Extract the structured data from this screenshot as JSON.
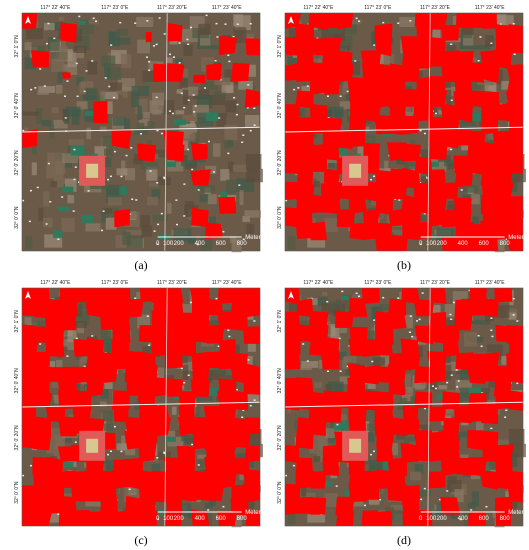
{
  "panels": [
    {
      "label": "(a)"
    },
    {
      "label": "(b)"
    },
    {
      "label": "(c)"
    },
    {
      "label": "(d)"
    }
  ],
  "map_labels": {
    "longitudes": [
      "117° 22' 40\"E",
      "117° 23' 0\"E",
      "117° 23' 20\"E",
      "117° 23' 40\"E"
    ],
    "latitudes": [
      "32° 1' 0\"N",
      "32° 0' 40\"N",
      "32° 0' 20\"N",
      "32° 0' 0\"N"
    ],
    "scale": [
      "0",
      "100",
      "200",
      "400",
      "600",
      "800"
    ],
    "scale_unit": "Meters"
  }
}
